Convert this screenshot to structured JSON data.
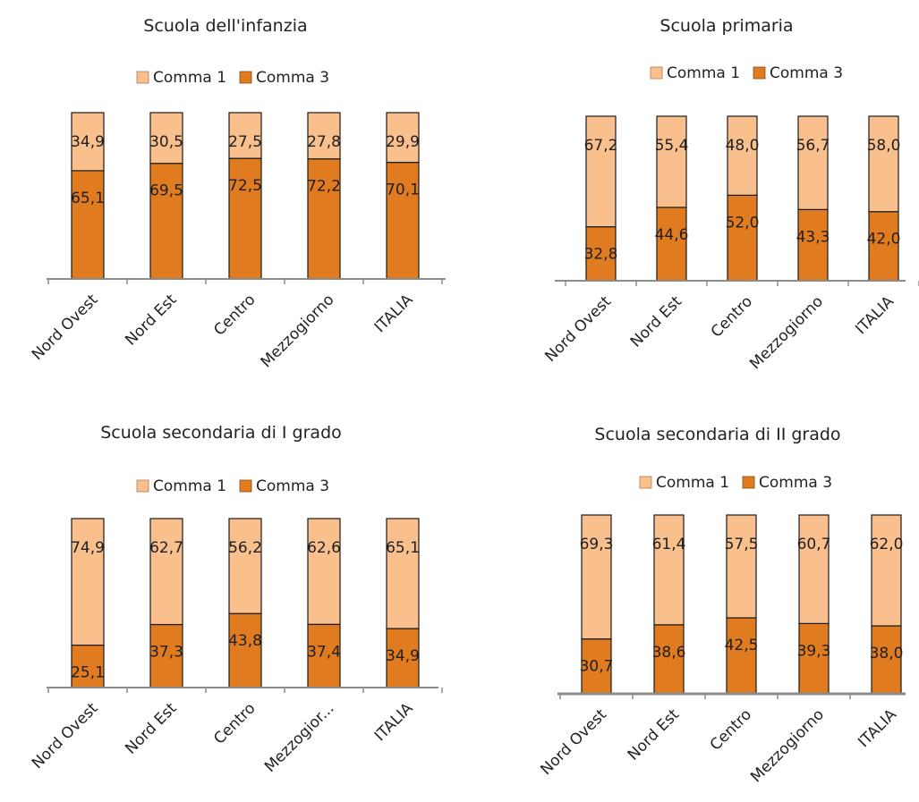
{
  "colors": {
    "comma1": "#f9c08e",
    "comma3": "#e07b20",
    "outline": "#1a1a1a",
    "axis": "#8c8c8c"
  },
  "chart_data": [
    {
      "type": "bar",
      "stacked": true,
      "title": "Scuola dell'infanzia",
      "categories": [
        "Nord Ovest",
        "Nord Est",
        "Centro",
        "Mezzogiorno",
        "ITALIA"
      ],
      "series": [
        {
          "name": "Comma 1",
          "values": [
            34.9,
            30.5,
            27.5,
            27.8,
            29.9
          ]
        },
        {
          "name": "Comma 3",
          "values": [
            65.1,
            69.5,
            72.5,
            72.2,
            70.1
          ]
        }
      ],
      "data_labels": {
        "Comma 1": [
          "34,9",
          "30,5",
          "27,5",
          "27,8",
          "29,9"
        ],
        "Comma 3": [
          "65,1",
          "69,5",
          "72,5",
          "72,2",
          "70,1"
        ]
      },
      "ylim": [
        0,
        100
      ],
      "legend": "top",
      "grid": false
    },
    {
      "type": "bar",
      "stacked": true,
      "title": "Scuola primaria",
      "categories": [
        "Nord Ovest",
        "Nord Est",
        "Centro",
        "Mezzogiorno",
        "ITALIA"
      ],
      "series": [
        {
          "name": "Comma 1",
          "values": [
            67.2,
            55.4,
            48.0,
            56.7,
            58.0
          ]
        },
        {
          "name": "Comma 3",
          "values": [
            32.8,
            44.6,
            52.0,
            43.3,
            42.0
          ]
        }
      ],
      "data_labels": {
        "Comma 1": [
          "67,2",
          "55,4",
          "48,0",
          "56,7",
          "58,0"
        ],
        "Comma 3": [
          "32,8",
          "44,6",
          "52,0",
          "43,3",
          "42,0"
        ]
      },
      "ylim": [
        0,
        100
      ],
      "legend": "top",
      "grid": false
    },
    {
      "type": "bar",
      "stacked": true,
      "title": "Scuola secondaria di I grado",
      "categories": [
        "Nord Ovest",
        "Nord Est",
        "Centro",
        "Mezzogior...",
        "ITALIA"
      ],
      "series": [
        {
          "name": "Comma 1",
          "values": [
            74.9,
            62.7,
            56.2,
            62.6,
            65.1
          ]
        },
        {
          "name": "Comma 3",
          "values": [
            25.1,
            37.3,
            43.8,
            37.4,
            34.9
          ]
        }
      ],
      "data_labels": {
        "Comma 1": [
          "74,9",
          "62,7",
          "56,2",
          "62,6",
          "65,1"
        ],
        "Comma 3": [
          "25,1",
          "37,3",
          "43,8",
          "37,4",
          "34,9"
        ]
      },
      "ylim": [
        0,
        100
      ],
      "legend": "top",
      "grid": false
    },
    {
      "type": "bar",
      "stacked": true,
      "title": "Scuola secondaria di II grado",
      "categories": [
        "Nord Ovest",
        "Nord Est",
        "Centro",
        "Mezzogiorno",
        "ITALIA"
      ],
      "series": [
        {
          "name": "Comma 1",
          "values": [
            69.3,
            61.4,
            57.5,
            60.7,
            62.0
          ]
        },
        {
          "name": "Comma 3",
          "values": [
            30.7,
            38.6,
            42.5,
            39.3,
            38.0
          ]
        }
      ],
      "data_labels": {
        "Comma 1": [
          "69,3",
          "61,4",
          "57,5",
          "60,7",
          "62,0"
        ],
        "Comma 3": [
          "30,7",
          "38,6",
          "42,5",
          "39,3",
          "38,0"
        ]
      },
      "ylim": [
        0,
        100
      ],
      "legend": "top",
      "grid": false
    }
  ]
}
